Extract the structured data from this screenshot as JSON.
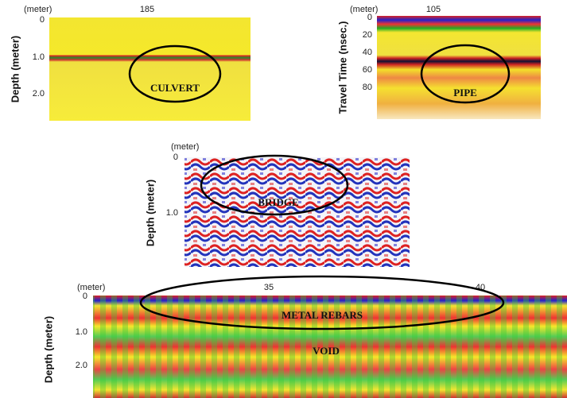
{
  "panels": [
    {
      "x_unit": "(meter)",
      "x_ticks": [
        "185"
      ],
      "y_label": "Depth (meter)",
      "y_ticks": [
        "0",
        "1.0",
        "2.0"
      ],
      "annotations": [
        "CULVERT"
      ]
    },
    {
      "x_unit": "(meter)",
      "x_ticks": [
        "105"
      ],
      "y_label": "Travel Time (nsec.)",
      "y_ticks": [
        "0",
        "20",
        "40",
        "60",
        "80"
      ],
      "annotations": [
        "PIPE"
      ]
    },
    {
      "x_unit": "(meter)",
      "y_label": "Depth (meter)",
      "y_ticks": [
        "0",
        "1.0"
      ],
      "annotations": [
        "BRIDGE"
      ]
    },
    {
      "x_unit": "(meter)",
      "x_ticks": [
        "35",
        "40"
      ],
      "y_label": "Depth (meter)",
      "y_ticks": [
        "0",
        "1.0",
        "2.0"
      ],
      "annotations": [
        "METAL REBARS",
        "VOID"
      ]
    }
  ]
}
